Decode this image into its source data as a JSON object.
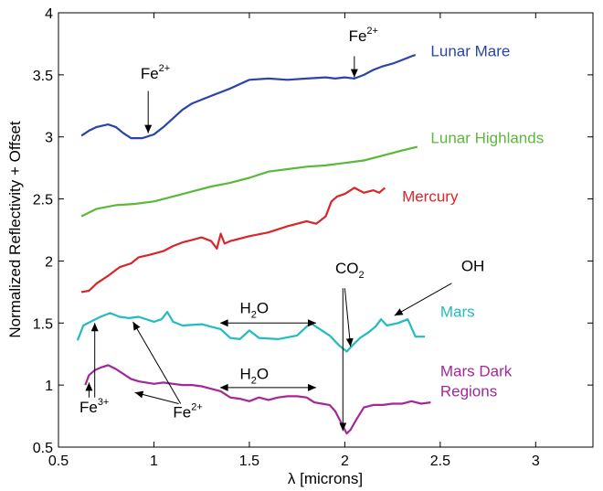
{
  "chart_data": {
    "type": "line",
    "xlabel": "λ [microns]",
    "ylabel": "Normalized Reflectivity + Offset",
    "xlim": [
      0.5,
      3.3
    ],
    "ylim": [
      0.5,
      4
    ],
    "xticks": [
      "0.5",
      "1",
      "1.5",
      "2",
      "2.5",
      "3"
    ],
    "yticks": [
      "0.5",
      "1",
      "1.5",
      "2",
      "2.5",
      "3",
      "3.5",
      "4"
    ],
    "xtick_values": [
      0.5,
      1,
      1.5,
      2,
      2.5,
      3
    ],
    "ytick_values": [
      0.5,
      1,
      1.5,
      2,
      2.5,
      3,
      3.5,
      4
    ],
    "grid": false,
    "series": [
      {
        "name": "Lunar Mare",
        "color": "#2a44a8",
        "label_pos": [
          2.45,
          3.65
        ],
        "points": [
          [
            0.62,
            3.01
          ],
          [
            0.66,
            3.05
          ],
          [
            0.7,
            3.08
          ],
          [
            0.76,
            3.1
          ],
          [
            0.8,
            3.08
          ],
          [
            0.84,
            3.03
          ],
          [
            0.88,
            2.99
          ],
          [
            0.94,
            2.99
          ],
          [
            1.0,
            3.02
          ],
          [
            1.05,
            3.08
          ],
          [
            1.1,
            3.15
          ],
          [
            1.15,
            3.22
          ],
          [
            1.2,
            3.27
          ],
          [
            1.3,
            3.33
          ],
          [
            1.4,
            3.39
          ],
          [
            1.5,
            3.46
          ],
          [
            1.6,
            3.47
          ],
          [
            1.7,
            3.46
          ],
          [
            1.8,
            3.47
          ],
          [
            1.9,
            3.48
          ],
          [
            1.95,
            3.47
          ],
          [
            2.0,
            3.48
          ],
          [
            2.05,
            3.47
          ],
          [
            2.1,
            3.5
          ],
          [
            2.15,
            3.54
          ],
          [
            2.2,
            3.57
          ],
          [
            2.25,
            3.59
          ],
          [
            2.3,
            3.62
          ],
          [
            2.35,
            3.65
          ],
          [
            2.37,
            3.66
          ]
        ]
      },
      {
        "name": "Lunar Highlands",
        "color": "#5cb83a",
        "label_pos": [
          2.45,
          2.95
        ],
        "points": [
          [
            0.62,
            2.36
          ],
          [
            0.7,
            2.42
          ],
          [
            0.8,
            2.45
          ],
          [
            0.9,
            2.46
          ],
          [
            1.0,
            2.48
          ],
          [
            1.1,
            2.52
          ],
          [
            1.2,
            2.56
          ],
          [
            1.3,
            2.6
          ],
          [
            1.4,
            2.63
          ],
          [
            1.5,
            2.67
          ],
          [
            1.6,
            2.72
          ],
          [
            1.7,
            2.74
          ],
          [
            1.8,
            2.76
          ],
          [
            1.9,
            2.77
          ],
          [
            2.0,
            2.79
          ],
          [
            2.1,
            2.81
          ],
          [
            2.2,
            2.85
          ],
          [
            2.3,
            2.89
          ],
          [
            2.38,
            2.92
          ]
        ]
      },
      {
        "name": "Mercury",
        "color": "#d8262a",
        "label_pos": [
          2.3,
          2.48
        ],
        "points": [
          [
            0.62,
            1.75
          ],
          [
            0.66,
            1.76
          ],
          [
            0.7,
            1.82
          ],
          [
            0.76,
            1.88
          ],
          [
            0.82,
            1.95
          ],
          [
            0.88,
            1.98
          ],
          [
            0.92,
            2.03
          ],
          [
            0.98,
            2.05
          ],
          [
            1.05,
            2.08
          ],
          [
            1.1,
            2.12
          ],
          [
            1.15,
            2.15
          ],
          [
            1.2,
            2.17
          ],
          [
            1.25,
            2.19
          ],
          [
            1.3,
            2.16
          ],
          [
            1.33,
            2.1
          ],
          [
            1.35,
            2.22
          ],
          [
            1.37,
            2.14
          ],
          [
            1.4,
            2.16
          ],
          [
            1.5,
            2.2
          ],
          [
            1.6,
            2.23
          ],
          [
            1.7,
            2.28
          ],
          [
            1.8,
            2.32
          ],
          [
            1.85,
            2.3
          ],
          [
            1.9,
            2.36
          ],
          [
            1.93,
            2.48
          ],
          [
            1.96,
            2.52
          ],
          [
            2.0,
            2.54
          ],
          [
            2.05,
            2.59
          ],
          [
            2.1,
            2.55
          ],
          [
            2.15,
            2.57
          ],
          [
            2.18,
            2.55
          ],
          [
            2.21,
            2.59
          ]
        ]
      },
      {
        "name": "Mars",
        "color": "#22bcc0",
        "label_pos": [
          2.5,
          1.55
        ],
        "points": [
          [
            0.6,
            1.36
          ],
          [
            0.63,
            1.48
          ],
          [
            0.68,
            1.52
          ],
          [
            0.72,
            1.55
          ],
          [
            0.77,
            1.58
          ],
          [
            0.82,
            1.55
          ],
          [
            0.87,
            1.54
          ],
          [
            0.92,
            1.55
          ],
          [
            1.0,
            1.51
          ],
          [
            1.04,
            1.53
          ],
          [
            1.07,
            1.59
          ],
          [
            1.1,
            1.51
          ],
          [
            1.15,
            1.48
          ],
          [
            1.25,
            1.49
          ],
          [
            1.35,
            1.45
          ],
          [
            1.4,
            1.38
          ],
          [
            1.45,
            1.37
          ],
          [
            1.5,
            1.44
          ],
          [
            1.55,
            1.38
          ],
          [
            1.65,
            1.37
          ],
          [
            1.75,
            1.4
          ],
          [
            1.82,
            1.5
          ],
          [
            1.86,
            1.46
          ],
          [
            1.92,
            1.4
          ],
          [
            1.97,
            1.32
          ],
          [
            2.01,
            1.27
          ],
          [
            2.04,
            1.32
          ],
          [
            2.08,
            1.38
          ],
          [
            2.12,
            1.42
          ],
          [
            2.16,
            1.47
          ],
          [
            2.19,
            1.53
          ],
          [
            2.22,
            1.48
          ],
          [
            2.28,
            1.5
          ],
          [
            2.33,
            1.53
          ],
          [
            2.37,
            1.39
          ],
          [
            2.42,
            1.39
          ]
        ]
      },
      {
        "name": "Mars Dark\nRegions",
        "color": "#a4279a",
        "label_pos": [
          2.5,
          1.07
        ],
        "points": [
          [
            0.64,
            1.0
          ],
          [
            0.66,
            1.08
          ],
          [
            0.69,
            1.12
          ],
          [
            0.72,
            1.14
          ],
          [
            0.76,
            1.16
          ],
          [
            0.8,
            1.13
          ],
          [
            0.84,
            1.09
          ],
          [
            0.88,
            1.05
          ],
          [
            0.92,
            1.03
          ],
          [
            0.96,
            1.02
          ],
          [
            1.0,
            1.01
          ],
          [
            1.05,
            1.02
          ],
          [
            1.1,
            1.01
          ],
          [
            1.15,
            1.0
          ],
          [
            1.2,
            1.0
          ],
          [
            1.25,
            0.99
          ],
          [
            1.3,
            0.97
          ],
          [
            1.35,
            0.95
          ],
          [
            1.4,
            0.9
          ],
          [
            1.45,
            0.89
          ],
          [
            1.5,
            0.87
          ],
          [
            1.55,
            0.9
          ],
          [
            1.6,
            0.88
          ],
          [
            1.65,
            0.9
          ],
          [
            1.7,
            0.91
          ],
          [
            1.75,
            0.91
          ],
          [
            1.8,
            0.9
          ],
          [
            1.84,
            0.86
          ],
          [
            1.88,
            0.85
          ],
          [
            1.92,
            0.84
          ],
          [
            1.95,
            0.79
          ],
          [
            1.98,
            0.7
          ],
          [
            2.01,
            0.61
          ],
          [
            2.03,
            0.64
          ],
          [
            2.06,
            0.72
          ],
          [
            2.1,
            0.82
          ],
          [
            2.15,
            0.84
          ],
          [
            2.2,
            0.84
          ],
          [
            2.25,
            0.85
          ],
          [
            2.3,
            0.85
          ],
          [
            2.35,
            0.87
          ],
          [
            2.4,
            0.85
          ],
          [
            2.45,
            0.86
          ]
        ]
      }
    ],
    "annotations": [
      {
        "id": "lunar-fe2-left",
        "text": "Fe",
        "sup": "2+",
        "pos": [
          0.93,
          3.47
        ],
        "arrow": [
          [
            0.97,
            3.37
          ],
          [
            0.97,
            3.03
          ]
        ]
      },
      {
        "id": "lunar-fe2-right",
        "text": "Fe",
        "sup": "2+",
        "pos": [
          2.02,
          3.77
        ],
        "arrow": [
          [
            2.05,
            3.65
          ],
          [
            2.05,
            3.48
          ]
        ]
      },
      {
        "id": "mars-h2o",
        "text": "H",
        "sub": "2",
        "tail": "O",
        "pos": [
          1.45,
          1.58
        ],
        "arrow_double": [
          [
            1.35,
            1.5
          ],
          [
            1.85,
            1.5
          ]
        ]
      },
      {
        "id": "dark-h2o",
        "text": "H",
        "sub": "2",
        "tail": "O",
        "pos": [
          1.45,
          1.05
        ],
        "arrow_double": [
          [
            1.35,
            0.98
          ],
          [
            1.85,
            0.98
          ]
        ]
      },
      {
        "id": "co2",
        "text": "CO",
        "sub": "2",
        "pos": [
          1.95,
          1.9
        ],
        "arrows": [
          [
            [
              2.0,
              1.78
            ],
            [
              2.03,
              1.31
            ]
          ],
          [
            [
              1.99,
              1.78
            ],
            [
              1.99,
              0.63
            ]
          ]
        ]
      },
      {
        "id": "oh",
        "text": "OH",
        "pos": [
          2.61,
          1.92
        ],
        "arrows": [
          [
            [
              2.56,
              1.82
            ],
            [
              2.26,
              1.56
            ]
          ]
        ]
      },
      {
        "id": "fe3",
        "text": "Fe",
        "sup": "3+",
        "pos": [
          0.61,
          0.78
        ],
        "arrows": [
          [
            [
              0.69,
              0.9
            ],
            [
              0.69,
              1.5
            ]
          ],
          [
            [
              0.66,
              0.9
            ],
            [
              0.66,
              1.02
            ]
          ]
        ]
      },
      {
        "id": "fe2-mars",
        "text": "Fe",
        "sup": "2+",
        "pos": [
          1.1,
          0.74
        ],
        "arrows": [
          [
            [
              1.14,
              0.85
            ],
            [
              0.89,
              1.51
            ]
          ],
          [
            [
              1.13,
              0.85
            ],
            [
              0.9,
              0.94
            ]
          ]
        ]
      }
    ]
  }
}
